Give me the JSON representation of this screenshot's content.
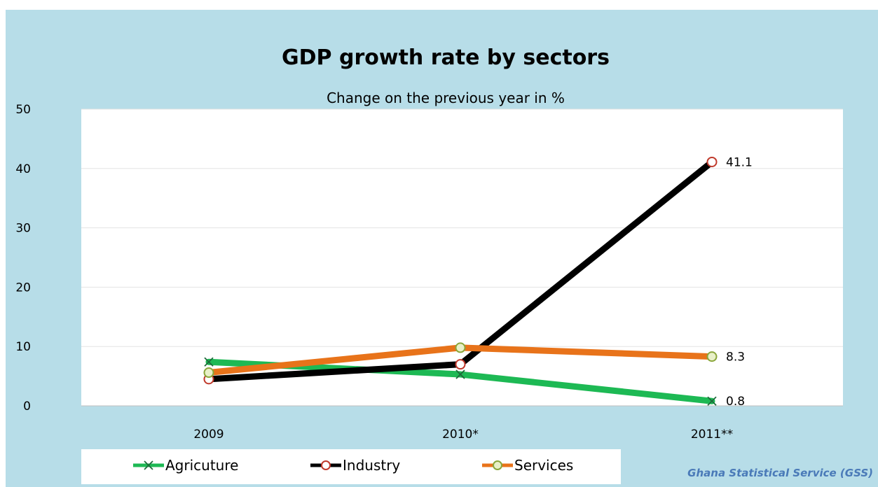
{
  "chart_data": {
    "type": "line",
    "title": "GDP growth rate by sectors",
    "subtitle": "Change on the previous year in %",
    "categories": [
      "2009",
      "2010*",
      "2011**"
    ],
    "ylim": [
      0,
      50
    ],
    "yticks": [
      "0",
      "10",
      "20",
      "30",
      "40",
      "50"
    ],
    "grid": true,
    "legend_position": "bottom-left",
    "series": [
      {
        "name": "Agricuture",
        "values": [
          7.4,
          5.3,
          0.8
        ],
        "color": "#1db954",
        "marker": "x",
        "end_label": "0.8"
      },
      {
        "name": "Industry",
        "values": [
          4.5,
          7.0,
          41.1
        ],
        "color": "#000000",
        "marker": "circle-red",
        "end_label": "41.1"
      },
      {
        "name": "Services",
        "values": [
          5.6,
          9.8,
          8.3
        ],
        "color": "#e8731a",
        "marker": "circle-green",
        "end_label": "8.3"
      }
    ],
    "source": "Ghana Statistical Service (GSS)"
  }
}
